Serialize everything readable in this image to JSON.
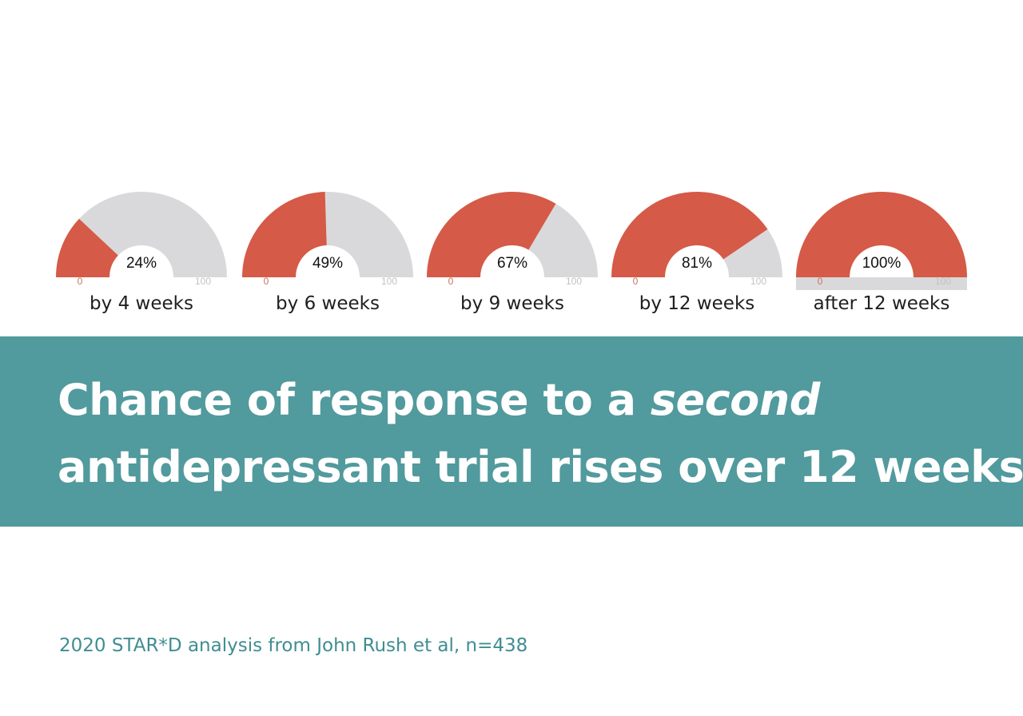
{
  "colors": {
    "fill": "#d55a47",
    "track": "#d9d9db",
    "banner": "#519a9d",
    "footer_text": "#3f8d92",
    "min_label": "#c8735f",
    "max_label": "#c2c2c2"
  },
  "chart_data": {
    "type": "gauge",
    "min": 0,
    "max": 100,
    "axis_min_label": "0",
    "axis_max_label": "100",
    "gauges": [
      {
        "label": "by 4 weeks",
        "value": 24,
        "value_label": "24%"
      },
      {
        "label": "by 6 weeks",
        "value": 49,
        "value_label": "49%"
      },
      {
        "label": "by 9 weeks",
        "value": 67,
        "value_label": "67%"
      },
      {
        "label": "by 12 weeks",
        "value": 81,
        "value_label": "81%"
      },
      {
        "label": "after 12 weeks",
        "value": 100,
        "value_label": "100%"
      }
    ]
  },
  "headline": {
    "line1_start": "Chance of response to a ",
    "line1_emphasis": "second",
    "line2": "antidepressant trial rises over 12 weeks"
  },
  "source": "2020 STAR*D analysis from John Rush et al, n=438"
}
